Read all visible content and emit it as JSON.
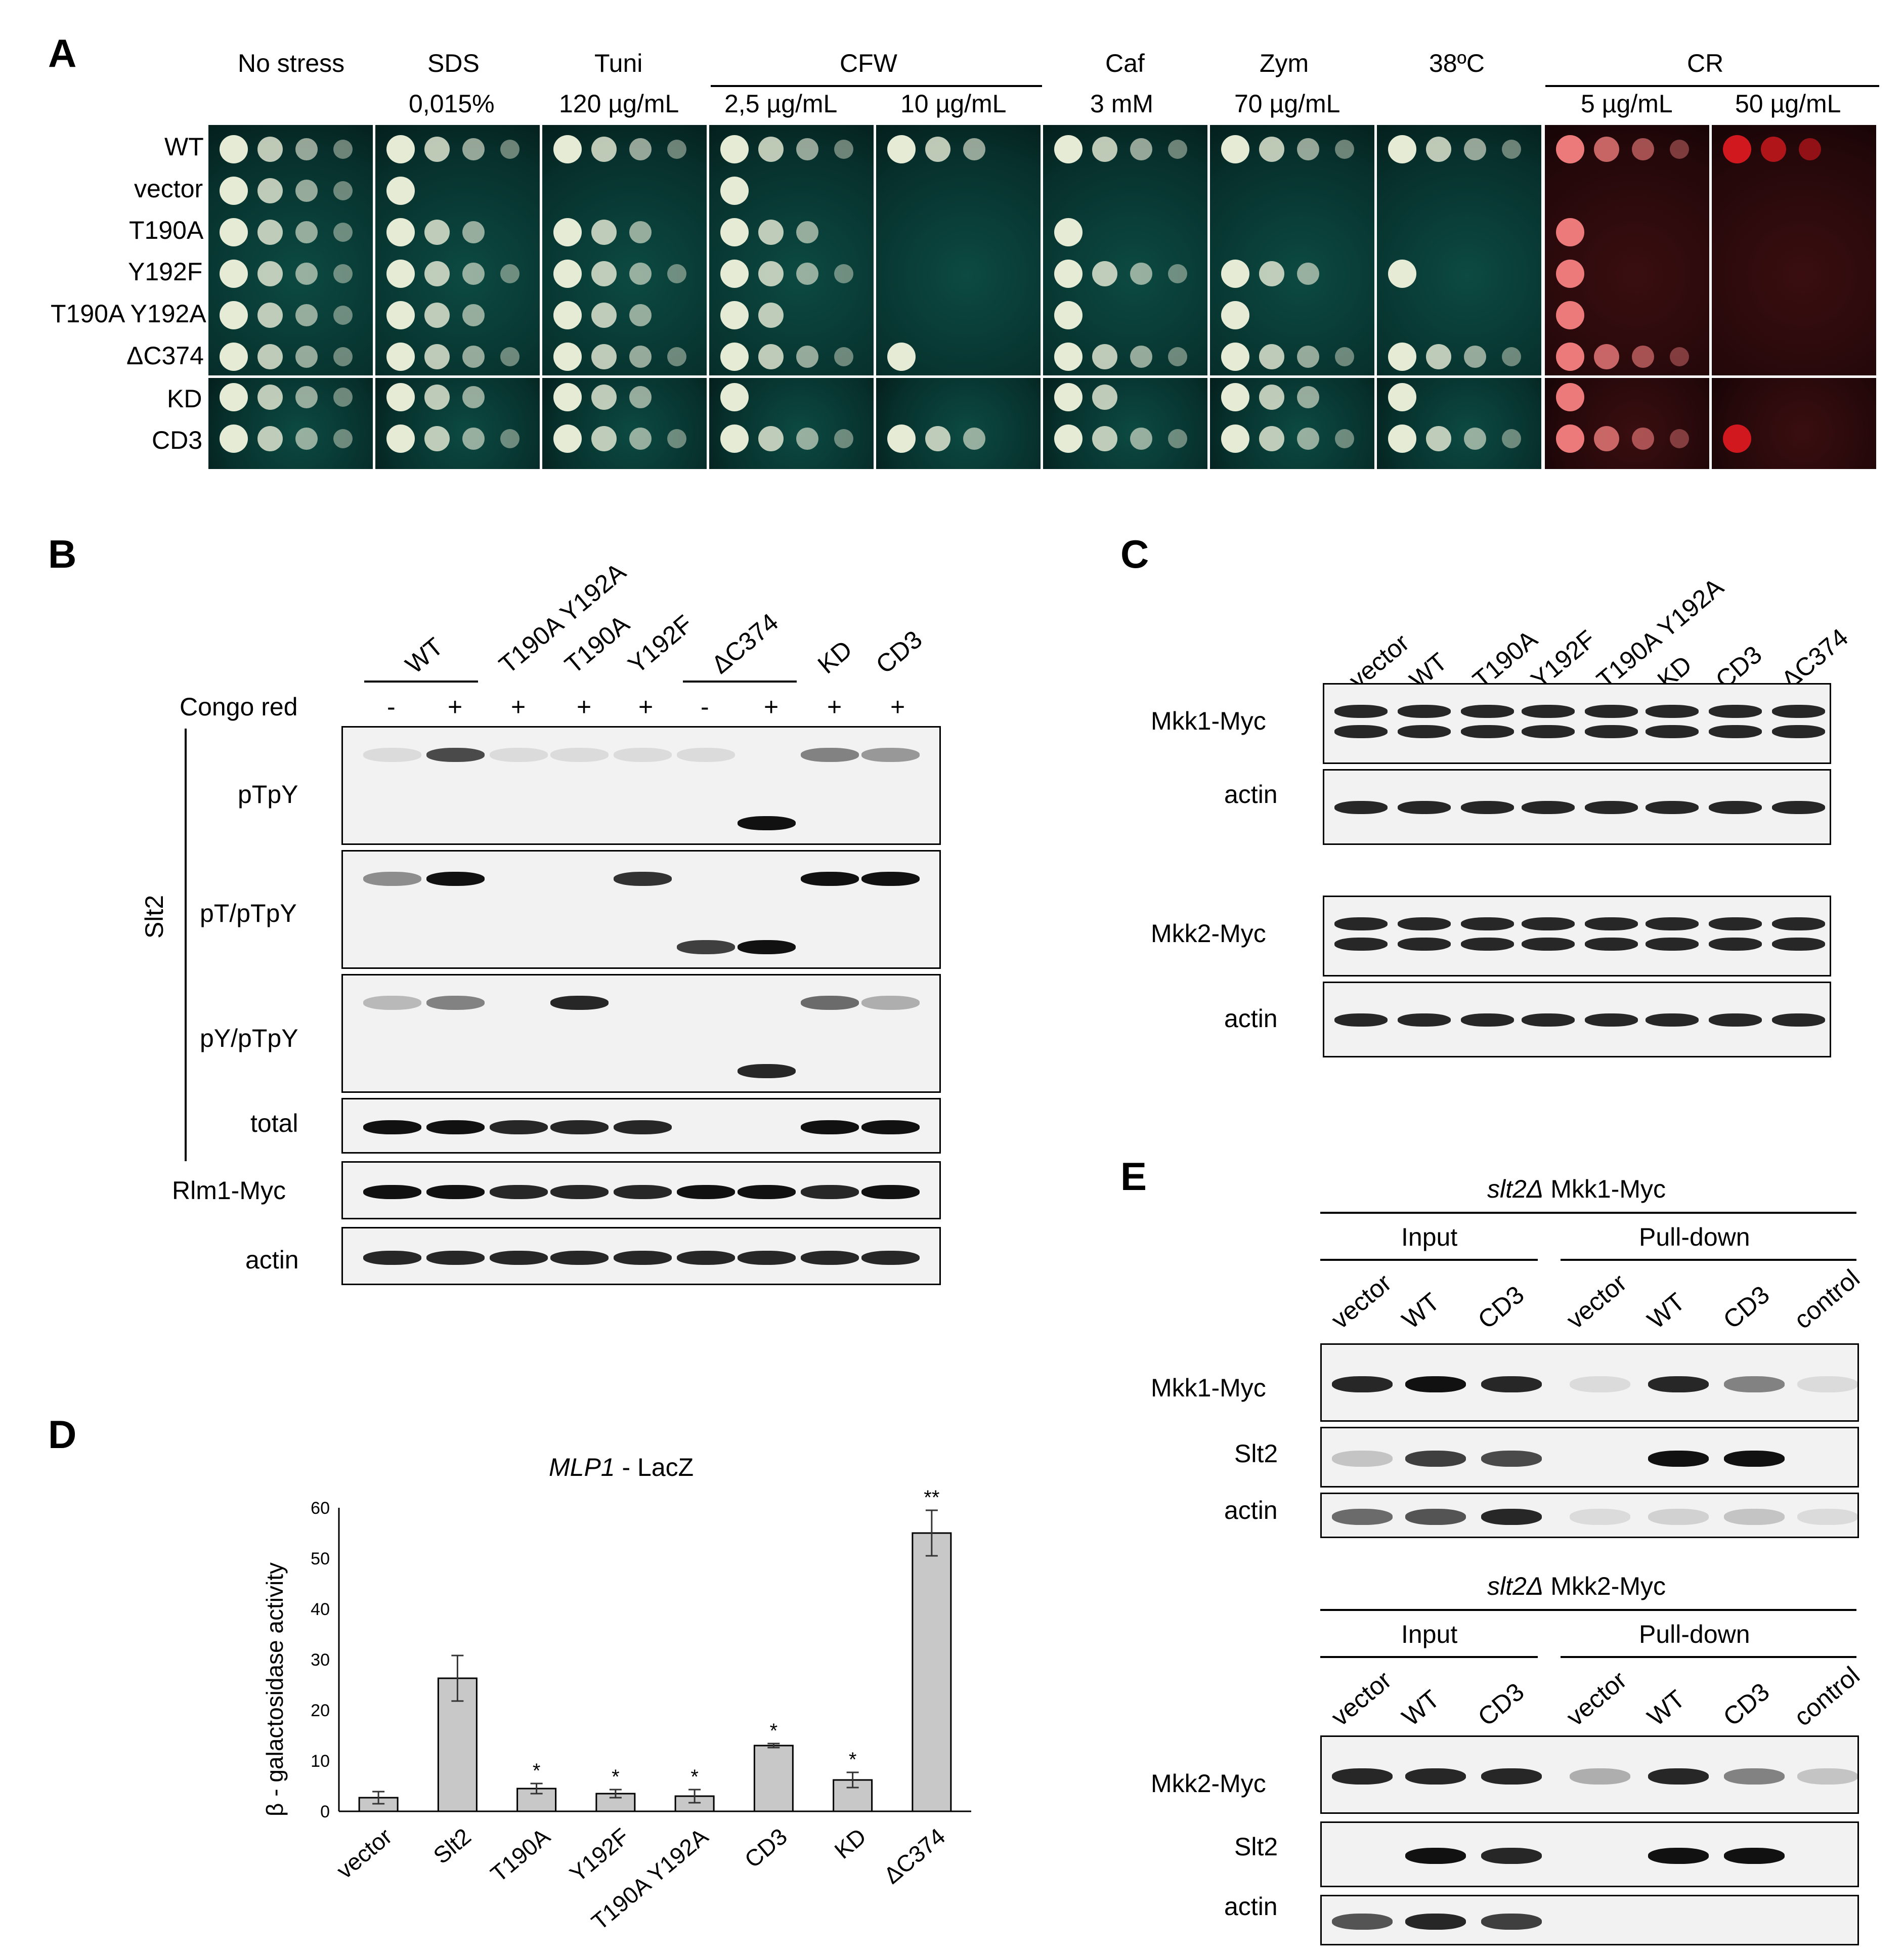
{
  "panels": {
    "a": "A",
    "b": "B",
    "c": "C",
    "d": "D",
    "e": "E"
  },
  "panel_a": {
    "headers": [
      {
        "top": "No stress",
        "bottom": ""
      },
      {
        "top": "SDS",
        "bottom": "0,015%"
      },
      {
        "top": "Tuni",
        "bottom": "120 µg/mL"
      },
      {
        "top": "",
        "bottom": "2,5 µg/mL"
      },
      {
        "top": "",
        "bottom": "10 µg/mL"
      },
      {
        "top": "Caf",
        "bottom": "3 mM"
      },
      {
        "top": "Zym",
        "bottom": "70 µg/mL"
      },
      {
        "top": "38ºC",
        "bottom": ""
      },
      {
        "top": "",
        "bottom": "5 µg/mL"
      },
      {
        "top": "",
        "bottom": "50 µg/mL"
      }
    ],
    "group_cfw": "CFW",
    "group_cr": "CR",
    "rows_top": [
      "WT",
      "vector",
      "T190A",
      "Y192F",
      "T190A Y192A",
      "ΔC374"
    ],
    "rows_bottom": [
      "KD",
      "CD3"
    ]
  },
  "panel_b": {
    "lanes": [
      "WT",
      "T190A Y192A",
      "T190A",
      "Y192F",
      "ΔC374",
      "KD",
      "CD3"
    ],
    "congo_label": "Congo red",
    "congo_signs": [
      "-",
      "+",
      "+",
      "+",
      "+",
      "-",
      "+",
      "+",
      "+"
    ],
    "group_label": "Slt2",
    "blots": [
      "pTpY",
      "pT/pTpY",
      "pY/pTpY",
      "total"
    ],
    "rlm1": "Rlm1-Myc",
    "actin": "actin"
  },
  "panel_c": {
    "lanes": [
      "vector",
      "WT",
      "T190A",
      "Y192F",
      "T190A Y192A",
      "KD",
      "CD3",
      "ΔC374"
    ],
    "blots": [
      "Mkk1-Myc",
      "actin",
      "Mkk2-Myc",
      "actin"
    ]
  },
  "panel_d": {
    "ylabel": "β - galactosidase activity",
    "title_italic": "MLP1",
    "title_rest": " - LacZ",
    "sig": [
      "",
      "",
      "*",
      "*",
      "*",
      "*",
      "*",
      "**"
    ]
  },
  "chart_data": {
    "type": "bar",
    "title": "MLP1 - LacZ",
    "ylabel": "β - galactosidase activity",
    "xlabel": "",
    "categories": [
      "vector",
      "Slt2",
      "T190A",
      "Y192F",
      "T190A Y192A",
      "CD3",
      "KD",
      "ΔC374"
    ],
    "values": [
      2.7,
      26.3,
      4.5,
      3.5,
      3.0,
      13.0,
      6.2,
      55.0
    ],
    "errors": [
      1.2,
      4.5,
      1.0,
      0.8,
      1.3,
      0.4,
      1.5,
      4.5
    ],
    "ylim": [
      0,
      60
    ],
    "yticks": [
      0,
      10,
      20,
      30,
      40,
      50,
      60
    ],
    "bar_color": "#c8c8c8",
    "grid": false
  },
  "panel_e": {
    "top_title_italic": "slt2Δ",
    "top_title_rest": " Mkk1-Myc",
    "bottom_title_italic": "slt2Δ",
    "bottom_title_rest": " Mkk2-Myc",
    "input": "Input",
    "pulldown": "Pull-down",
    "lanes": [
      "vector",
      "WT",
      "CD3",
      "vector",
      "WT",
      "CD3",
      "control"
    ],
    "top_blots": [
      "Mkk1-Myc",
      "Slt2",
      "actin"
    ],
    "bottom_blots": [
      "Mkk2-Myc",
      "Slt2",
      "actin"
    ]
  },
  "colors": {
    "plate": "#07302c",
    "plate_cr": "#25080a",
    "colony": "#e6ebd6",
    "cr_colony": "#e87878",
    "band": "#111111"
  }
}
